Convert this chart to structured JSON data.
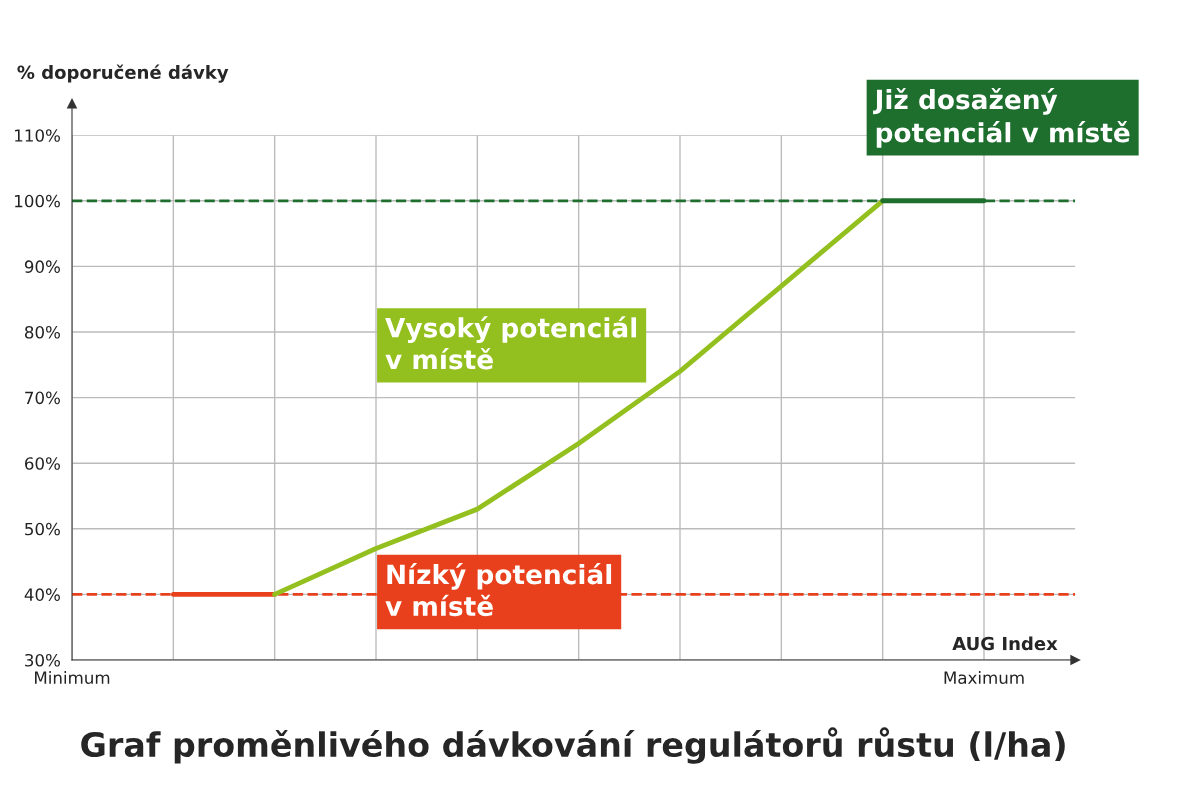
{
  "chart_data": {
    "type": "line",
    "title": "Graf proměnlivého dávkování regulátorů růstu (l/ha)",
    "xlabel": "AUG Index",
    "ylabel": "% doporučené dávky",
    "categories": [
      "Minimum",
      null,
      null,
      null,
      null,
      null,
      null,
      null,
      null,
      "Maximum"
    ],
    "ylim": [
      30,
      110
    ],
    "yticks": [
      {
        "value": 30,
        "label": "30%"
      },
      {
        "value": 40,
        "label": "40%"
      },
      {
        "value": 50,
        "label": "50%"
      },
      {
        "value": 60,
        "label": "60%"
      },
      {
        "value": 70,
        "label": "70%"
      },
      {
        "value": 80,
        "label": "80%"
      },
      {
        "value": 90,
        "label": "90%"
      },
      {
        "value": 100,
        "label": "100%"
      },
      {
        "value": 110,
        "label": "110%"
      }
    ],
    "grid": true,
    "line_style": "solid",
    "series": [
      {
        "color": "#e8401c",
        "values": [
          null,
          40,
          40,
          null,
          null,
          null,
          null,
          null,
          null,
          null
        ]
      },
      {
        "color": "#93c01f",
        "values": [
          null,
          null,
          40,
          47,
          53,
          63,
          74,
          87,
          100,
          null
        ]
      },
      {
        "color": "#1e6e2e",
        "values": [
          null,
          null,
          null,
          null,
          null,
          null,
          null,
          null,
          100,
          100
        ]
      }
    ],
    "ref_lines": [
      {
        "axis": "y",
        "value": 40,
        "color": "#e8401c",
        "line_style": "dashed"
      },
      {
        "axis": "y",
        "value": 100,
        "color": "#1e6e2e",
        "line_style": "dashed"
      }
    ],
    "annotations": [
      "Nízký potenciál\nv místě",
      "Vysoký potenciál\nv místě",
      "Již dosažený\npotenciál v místě"
    ]
  }
}
